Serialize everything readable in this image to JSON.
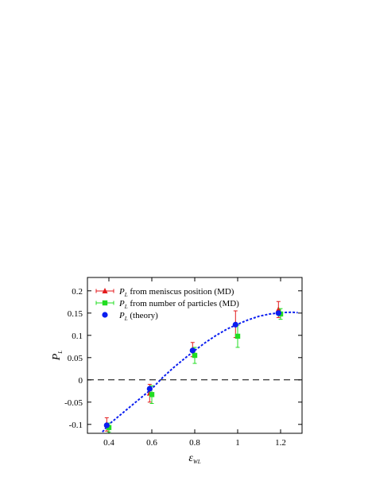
{
  "chart_data": {
    "type": "scatter",
    "xlabel": "ε",
    "xlabel_sub": "WL",
    "ylabel": "P",
    "ylabel_sub": "L",
    "xlim": [
      0.3,
      1.3
    ],
    "ylim": [
      -0.12,
      0.23
    ],
    "xticks": [
      0.4,
      0.6,
      0.8,
      1,
      1.2
    ],
    "xtick_labels": [
      "0.4",
      "0.6",
      "0.8",
      "1",
      "1.2"
    ],
    "yticks": [
      -0.1,
      -0.05,
      0,
      0.05,
      0.1,
      0.15,
      0.2
    ],
    "ytick_labels": [
      "-0.1",
      "-0.05",
      "0",
      "0.05",
      "0.1",
      "0.15",
      "0.2"
    ],
    "legend_position": "top-left",
    "reference_line": {
      "y": 0,
      "style": "dashed",
      "color": "#000000"
    },
    "series": [
      {
        "name_symbol": "P",
        "name_sub": "L",
        "name_rest": " from meniscus position (MD)",
        "color": "#e31a1c",
        "marker": "triangle",
        "x": [
          0.39,
          0.59,
          0.79,
          0.99,
          1.19
        ],
        "y": [
          -0.1,
          -0.03,
          0.068,
          0.125,
          0.158
        ],
        "err": [
          0.015,
          0.02,
          0.016,
          0.03,
          0.018
        ]
      },
      {
        "name_symbol": "P",
        "name_sub": "L",
        "name_rest": " from number of particles (MD)",
        "color": "#22dd22",
        "marker": "square",
        "x": [
          0.4,
          0.6,
          0.8,
          1.0,
          1.2
        ],
        "y": [
          -0.107,
          -0.033,
          0.055,
          0.098,
          0.148
        ],
        "err": [
          0.01,
          0.02,
          0.018,
          0.025,
          0.012
        ]
      },
      {
        "name_symbol": "P",
        "name_sub": "L",
        "name_rest": " (theory)",
        "color": "#0a1ef0",
        "marker": "circle",
        "x": [
          0.39,
          0.59,
          0.79,
          0.99,
          1.19
        ],
        "y": [
          -0.102,
          -0.02,
          0.066,
          0.124,
          0.15
        ],
        "curve": {
          "style": "dashed",
          "x": [
            0.37,
            0.4,
            0.45,
            0.5,
            0.55,
            0.6,
            0.65,
            0.7,
            0.75,
            0.8,
            0.85,
            0.9,
            0.95,
            1.0,
            1.05,
            1.1,
            1.15,
            1.2,
            1.25,
            1.28
          ],
          "y": [
            -0.117,
            -0.1,
            -0.08,
            -0.06,
            -0.04,
            -0.02,
            0.005,
            0.027,
            0.047,
            0.066,
            0.084,
            0.1,
            0.114,
            0.125,
            0.135,
            0.143,
            0.148,
            0.151,
            0.152,
            0.151
          ]
        }
      }
    ]
  }
}
